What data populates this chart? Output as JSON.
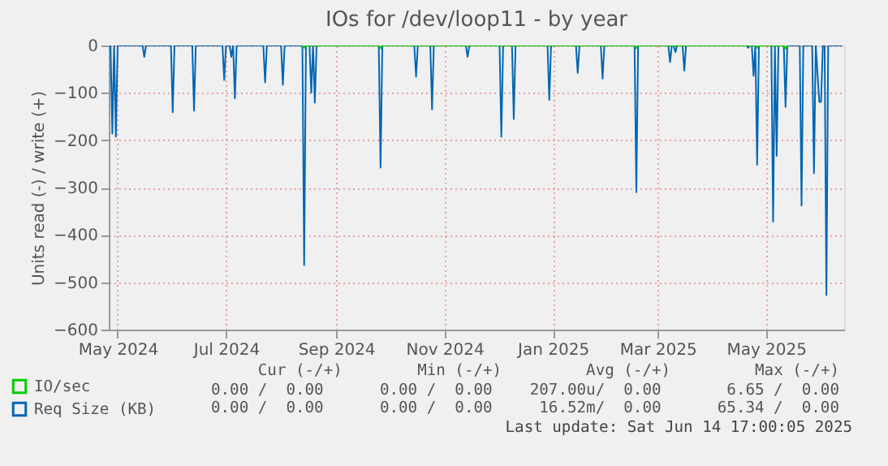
{
  "chart_data": {
    "type": "line",
    "title": "IOs for /dev/loop11 - by year",
    "ylabel": "Units read (-) / write (+)",
    "xlim": [
      "2024-04-26",
      "2025-06-14"
    ],
    "xticks": [
      {
        "value": "2024-05-01",
        "label": "May 2024"
      },
      {
        "value": "2024-07-01",
        "label": "Jul 2024"
      },
      {
        "value": "2024-09-01",
        "label": "Sep 2024"
      },
      {
        "value": "2024-11-01",
        "label": "Nov 2024"
      },
      {
        "value": "2025-01-01",
        "label": "Jan 2025"
      },
      {
        "value": "2025-03-01",
        "label": "Mar 2025"
      },
      {
        "value": "2025-05-01",
        "label": "May 2025"
      }
    ],
    "ylim": [
      -600,
      0
    ],
    "yticks": [
      -600,
      -500,
      -400,
      -300,
      -200,
      -100,
      0
    ],
    "grid": true,
    "legend": "bottom left",
    "line_style": "solid",
    "marker": "none",
    "series": [
      {
        "name": "IO/sec",
        "color": "#00cc00",
        "x": [
          "2024-08-13",
          "2024-08-14",
          "2024-08-15",
          "2024-09-25",
          "2024-09-26",
          "2024-09-27",
          "2025-02-16",
          "2025-02-17",
          "2025-02-18",
          "2025-04-25",
          "2025-04-26",
          "2025-04-27",
          "2025-05-11",
          "2025-05-12",
          "2025-05-13"
        ],
        "values": [
          0,
          -5,
          0,
          0,
          -6,
          0,
          0,
          -6,
          0,
          0,
          -5,
          0,
          0,
          -7,
          0
        ]
      },
      {
        "name": "Req Size (KB)",
        "color": "#0066b3",
        "x": [
          "2024-04-27",
          "2024-04-28",
          "2024-04-29",
          "2024-04-30",
          "2024-05-01",
          "2024-05-15",
          "2024-05-16",
          "2024-05-17",
          "2024-05-31",
          "2024-06-01",
          "2024-06-02",
          "2024-06-12",
          "2024-06-13",
          "2024-06-14",
          "2024-06-29",
          "2024-06-30",
          "2024-07-01",
          "2024-07-03",
          "2024-07-04",
          "2024-07-05",
          "2024-07-06",
          "2024-07-07",
          "2024-07-22",
          "2024-07-23",
          "2024-07-24",
          "2024-08-01",
          "2024-08-02",
          "2024-08-03",
          "2024-08-13",
          "2024-08-14",
          "2024-08-15",
          "2024-08-17",
          "2024-08-18",
          "2024-08-19",
          "2024-08-20",
          "2024-08-21",
          "2024-09-25",
          "2024-09-26",
          "2024-09-27",
          "2024-10-15",
          "2024-10-16",
          "2024-10-17",
          "2024-10-24",
          "2024-10-25",
          "2024-10-26",
          "2024-11-13",
          "2024-11-14",
          "2024-11-15",
          "2024-12-02",
          "2024-12-03",
          "2024-12-04",
          "2024-12-09",
          "2024-12-10",
          "2024-12-11",
          "2024-12-29",
          "2024-12-30",
          "2024-12-31",
          "2025-01-14",
          "2025-01-15",
          "2025-01-16",
          "2025-01-28",
          "2025-01-29",
          "2025-01-30",
          "2025-02-16",
          "2025-02-17",
          "2025-02-18",
          "2025-03-07",
          "2025-03-08",
          "2025-03-09",
          "2025-03-10",
          "2025-03-11",
          "2025-03-12",
          "2025-03-15",
          "2025-03-16",
          "2025-03-17",
          "2025-04-20",
          "2025-04-21",
          "2025-04-22",
          "2025-04-23",
          "2025-04-24",
          "2025-04-25",
          "2025-04-26",
          "2025-04-27",
          "2025-05-04",
          "2025-05-05",
          "2025-05-06",
          "2025-05-07",
          "2025-05-08",
          "2025-05-11",
          "2025-05-12",
          "2025-05-13",
          "2025-05-20",
          "2025-05-21",
          "2025-05-22",
          "2025-05-27",
          "2025-05-28",
          "2025-05-29",
          "2025-05-31",
          "2025-06-01",
          "2025-06-02",
          "2025-06-03",
          "2025-06-04",
          "2025-06-05",
          "2025-06-13"
        ],
        "values": [
          0,
          -186,
          0,
          -193,
          0,
          0,
          -24,
          0,
          0,
          -141,
          0,
          0,
          -138,
          0,
          0,
          -73,
          0,
          0,
          -24,
          0,
          -112,
          0,
          0,
          -78,
          0,
          0,
          -83,
          0,
          0,
          -464,
          0,
          0,
          -100,
          0,
          -121,
          0,
          0,
          -258,
          0,
          0,
          -66,
          0,
          0,
          -135,
          0,
          0,
          -24,
          0,
          0,
          -193,
          0,
          0,
          -155,
          0,
          0,
          -115,
          0,
          0,
          -58,
          0,
          0,
          -70,
          0,
          0,
          -310,
          0,
          0,
          -35,
          0,
          0,
          -14,
          0,
          0,
          -53,
          0,
          0,
          -5,
          0,
          0,
          -64,
          0,
          -252,
          0,
          0,
          -372,
          0,
          -233,
          0,
          0,
          -130,
          0,
          0,
          -338,
          0,
          0,
          -270,
          0,
          -119,
          -119,
          0,
          0,
          -527,
          0,
          0
        ]
      }
    ],
    "annotations": [
      "Cur (-/+)        Min (-/+)         Avg (-/+)         Max (-/+)",
      "0.00 /  0.00      0.00 /  0.00    207.00u/  0.00       6.65 /  0.00",
      "0.00 /  0.00      0.00 /  0.00     16.52m/  0.00      65.34 /  0.00",
      "Last update: Sat Jun 14 17:00:05 2025"
    ]
  }
}
